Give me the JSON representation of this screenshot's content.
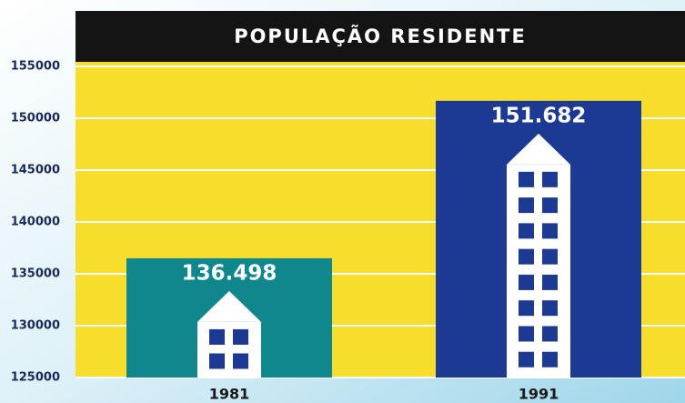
{
  "chart_data": {
    "type": "bar",
    "title": "POPULAÇÃO RESIDENTE",
    "categories": [
      "1981",
      "1991"
    ],
    "values": [
      136498,
      151682
    ],
    "value_labels": [
      "136.498",
      "151.682"
    ],
    "colors": [
      "#0f878c",
      "#1c3a92"
    ],
    "background": "#f7dd2c",
    "ylim": [
      125000,
      155000
    ],
    "yticks": [
      125000,
      130000,
      135000,
      140000,
      145000,
      150000,
      155000
    ],
    "grid": true
  }
}
